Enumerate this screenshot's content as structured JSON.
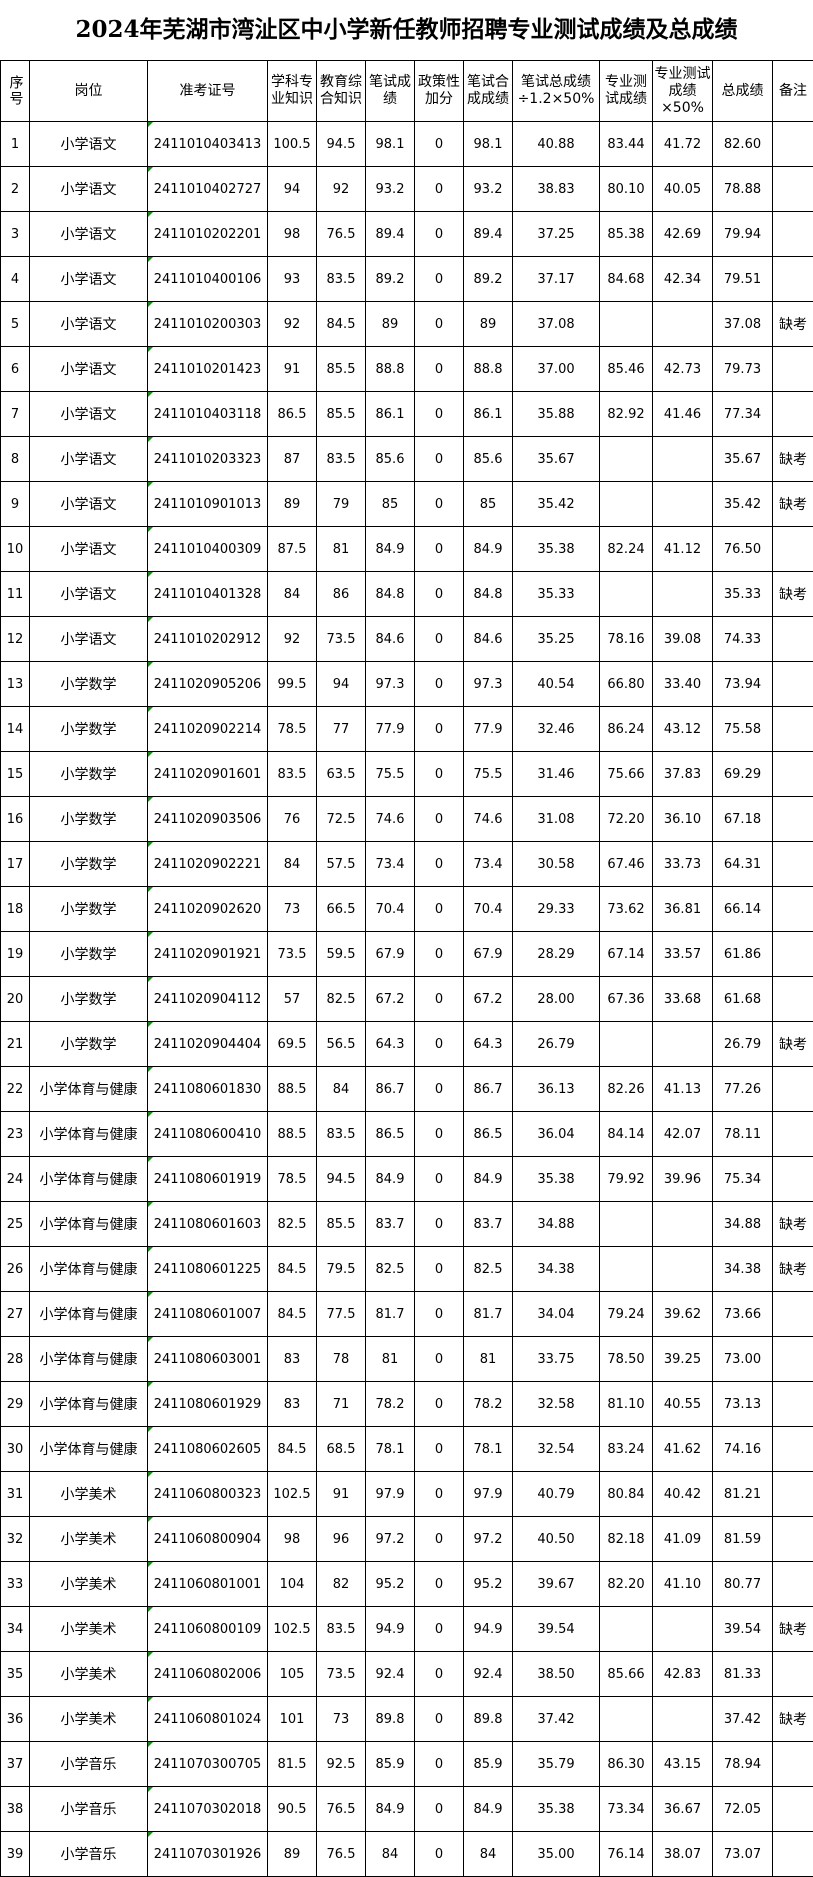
{
  "title": "2024年芜湖市湾沚区中小学新任教师招聘专业测试成绩及总成绩",
  "headers": [
    "序号",
    "岗位",
    "准考证号",
    "学科专业知识",
    "教育综合知识",
    "笔试成绩",
    "政策性加分",
    "笔试合成成绩",
    "笔试总成绩÷1.2×50%",
    "专业测试成绩",
    "专业测试成绩×50%",
    "总成绩",
    "备注"
  ],
  "rows": [
    [
      "1",
      "小学语文",
      "2411010403413",
      "100.5",
      "94.5",
      "98.1",
      "0",
      "98.1",
      "40.88",
      "83.44",
      "41.72",
      "82.60",
      ""
    ],
    [
      "2",
      "小学语文",
      "2411010402727",
      "94",
      "92",
      "93.2",
      "0",
      "93.2",
      "38.83",
      "80.10",
      "40.05",
      "78.88",
      ""
    ],
    [
      "3",
      "小学语文",
      "2411010202201",
      "98",
      "76.5",
      "89.4",
      "0",
      "89.4",
      "37.25",
      "85.38",
      "42.69",
      "79.94",
      ""
    ],
    [
      "4",
      "小学语文",
      "2411010400106",
      "93",
      "83.5",
      "89.2",
      "0",
      "89.2",
      "37.17",
      "84.68",
      "42.34",
      "79.51",
      ""
    ],
    [
      "5",
      "小学语文",
      "2411010200303",
      "92",
      "84.5",
      "89",
      "0",
      "89",
      "37.08",
      "",
      "",
      "37.08",
      "缺考"
    ],
    [
      "6",
      "小学语文",
      "2411010201423",
      "91",
      "85.5",
      "88.8",
      "0",
      "88.8",
      "37.00",
      "85.46",
      "42.73",
      "79.73",
      ""
    ],
    [
      "7",
      "小学语文",
      "2411010403118",
      "86.5",
      "85.5",
      "86.1",
      "0",
      "86.1",
      "35.88",
      "82.92",
      "41.46",
      "77.34",
      ""
    ],
    [
      "8",
      "小学语文",
      "2411010203323",
      "87",
      "83.5",
      "85.6",
      "0",
      "85.6",
      "35.67",
      "",
      "",
      "35.67",
      "缺考"
    ],
    [
      "9",
      "小学语文",
      "2411010901013",
      "89",
      "79",
      "85",
      "0",
      "85",
      "35.42",
      "",
      "",
      "35.42",
      "缺考"
    ],
    [
      "10",
      "小学语文",
      "2411010400309",
      "87.5",
      "81",
      "84.9",
      "0",
      "84.9",
      "35.38",
      "82.24",
      "41.12",
      "76.50",
      ""
    ],
    [
      "11",
      "小学语文",
      "2411010401328",
      "84",
      "86",
      "84.8",
      "0",
      "84.8",
      "35.33",
      "",
      "",
      "35.33",
      "缺考"
    ],
    [
      "12",
      "小学语文",
      "2411010202912",
      "92",
      "73.5",
      "84.6",
      "0",
      "84.6",
      "35.25",
      "78.16",
      "39.08",
      "74.33",
      ""
    ],
    [
      "13",
      "小学数学",
      "2411020905206",
      "99.5",
      "94",
      "97.3",
      "0",
      "97.3",
      "40.54",
      "66.80",
      "33.40",
      "73.94",
      ""
    ],
    [
      "14",
      "小学数学",
      "2411020902214",
      "78.5",
      "77",
      "77.9",
      "0",
      "77.9",
      "32.46",
      "86.24",
      "43.12",
      "75.58",
      ""
    ],
    [
      "15",
      "小学数学",
      "2411020901601",
      "83.5",
      "63.5",
      "75.5",
      "0",
      "75.5",
      "31.46",
      "75.66",
      "37.83",
      "69.29",
      ""
    ],
    [
      "16",
      "小学数学",
      "2411020903506",
      "76",
      "72.5",
      "74.6",
      "0",
      "74.6",
      "31.08",
      "72.20",
      "36.10",
      "67.18",
      ""
    ],
    [
      "17",
      "小学数学",
      "2411020902221",
      "84",
      "57.5",
      "73.4",
      "0",
      "73.4",
      "30.58",
      "67.46",
      "33.73",
      "64.31",
      ""
    ],
    [
      "18",
      "小学数学",
      "2411020902620",
      "73",
      "66.5",
      "70.4",
      "0",
      "70.4",
      "29.33",
      "73.62",
      "36.81",
      "66.14",
      ""
    ],
    [
      "19",
      "小学数学",
      "2411020901921",
      "73.5",
      "59.5",
      "67.9",
      "0",
      "67.9",
      "28.29",
      "67.14",
      "33.57",
      "61.86",
      ""
    ],
    [
      "20",
      "小学数学",
      "2411020904112",
      "57",
      "82.5",
      "67.2",
      "0",
      "67.2",
      "28.00",
      "67.36",
      "33.68",
      "61.68",
      ""
    ],
    [
      "21",
      "小学数学",
      "2411020904404",
      "69.5",
      "56.5",
      "64.3",
      "0",
      "64.3",
      "26.79",
      "",
      "",
      "26.79",
      "缺考"
    ],
    [
      "22",
      "小学体育与健康",
      "2411080601830",
      "88.5",
      "84",
      "86.7",
      "0",
      "86.7",
      "36.13",
      "82.26",
      "41.13",
      "77.26",
      ""
    ],
    [
      "23",
      "小学体育与健康",
      "2411080600410",
      "88.5",
      "83.5",
      "86.5",
      "0",
      "86.5",
      "36.04",
      "84.14",
      "42.07",
      "78.11",
      ""
    ],
    [
      "24",
      "小学体育与健康",
      "2411080601919",
      "78.5",
      "94.5",
      "84.9",
      "0",
      "84.9",
      "35.38",
      "79.92",
      "39.96",
      "75.34",
      ""
    ],
    [
      "25",
      "小学体育与健康",
      "2411080601603",
      "82.5",
      "85.5",
      "83.7",
      "0",
      "83.7",
      "34.88",
      "",
      "",
      "34.88",
      "缺考"
    ],
    [
      "26",
      "小学体育与健康",
      "2411080601225",
      "84.5",
      "79.5",
      "82.5",
      "0",
      "82.5",
      "34.38",
      "",
      "",
      "34.38",
      "缺考"
    ],
    [
      "27",
      "小学体育与健康",
      "2411080601007",
      "84.5",
      "77.5",
      "81.7",
      "0",
      "81.7",
      "34.04",
      "79.24",
      "39.62",
      "73.66",
      ""
    ],
    [
      "28",
      "小学体育与健康",
      "2411080603001",
      "83",
      "78",
      "81",
      "0",
      "81",
      "33.75",
      "78.50",
      "39.25",
      "73.00",
      ""
    ],
    [
      "29",
      "小学体育与健康",
      "2411080601929",
      "83",
      "71",
      "78.2",
      "0",
      "78.2",
      "32.58",
      "81.10",
      "40.55",
      "73.13",
      ""
    ],
    [
      "30",
      "小学体育与健康",
      "2411080602605",
      "84.5",
      "68.5",
      "78.1",
      "0",
      "78.1",
      "32.54",
      "83.24",
      "41.62",
      "74.16",
      ""
    ],
    [
      "31",
      "小学美术",
      "2411060800323",
      "102.5",
      "91",
      "97.9",
      "0",
      "97.9",
      "40.79",
      "80.84",
      "40.42",
      "81.21",
      ""
    ],
    [
      "32",
      "小学美术",
      "2411060800904",
      "98",
      "96",
      "97.2",
      "0",
      "97.2",
      "40.50",
      "82.18",
      "41.09",
      "81.59",
      ""
    ],
    [
      "33",
      "小学美术",
      "2411060801001",
      "104",
      "82",
      "95.2",
      "0",
      "95.2",
      "39.67",
      "82.20",
      "41.10",
      "80.77",
      ""
    ],
    [
      "34",
      "小学美术",
      "2411060800109",
      "102.5",
      "83.5",
      "94.9",
      "0",
      "94.9",
      "39.54",
      "",
      "",
      "39.54",
      "缺考"
    ],
    [
      "35",
      "小学美术",
      "2411060802006",
      "105",
      "73.5",
      "92.4",
      "0",
      "92.4",
      "38.50",
      "85.66",
      "42.83",
      "81.33",
      ""
    ],
    [
      "36",
      "小学美术",
      "2411060801024",
      "101",
      "73",
      "89.8",
      "0",
      "89.8",
      "37.42",
      "",
      "",
      "37.42",
      "缺考"
    ],
    [
      "37",
      "小学音乐",
      "2411070300705",
      "81.5",
      "92.5",
      "85.9",
      "0",
      "85.9",
      "35.79",
      "86.30",
      "43.15",
      "78.94",
      ""
    ],
    [
      "38",
      "小学音乐",
      "2411070302018",
      "90.5",
      "76.5",
      "84.9",
      "0",
      "84.9",
      "35.38",
      "73.34",
      "36.67",
      "72.05",
      ""
    ],
    [
      "39",
      "小学音乐",
      "2411070301926",
      "89",
      "76.5",
      "84",
      "0",
      "84",
      "35.00",
      "76.14",
      "38.07",
      "73.07",
      ""
    ]
  ],
  "colors": {
    "cell_marker": "#1a8a1a",
    "border": "#000000"
  }
}
